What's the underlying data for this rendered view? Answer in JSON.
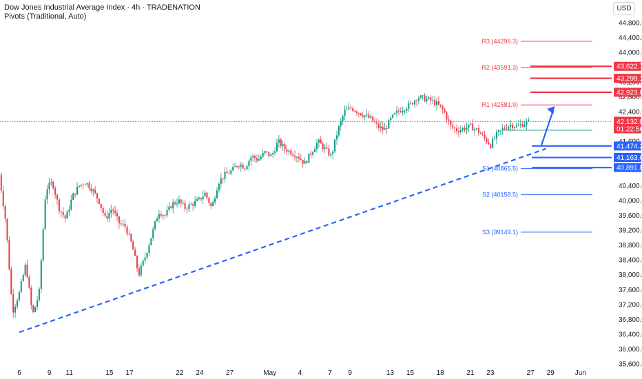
{
  "header": {
    "title": "Dow Jones Industrial Average Index · 4h · TRADENATION",
    "subtitle": "Pivots (Traditional, Auto)",
    "currency": "USD"
  },
  "colors": {
    "up": "#089981",
    "down": "#f23645",
    "pivot_red": "#f23645",
    "pivot_blue": "#2962ff",
    "resistance": "#f23645",
    "support": "#2962ff",
    "trendline": "#2962ff",
    "price_line": "#f23645"
  },
  "chart_data": {
    "type": "candlestick",
    "y_axis": {
      "ylim": [
        35430,
        45040
      ],
      "ticks": [
        "44,800.0",
        "44,400.0",
        "44,000.0",
        "43,600.0",
        "43,200.0",
        "42,800.0",
        "42,400.0",
        "42,000.0",
        "41,600.0",
        "41,200.0",
        "40,400.0",
        "40,000.0",
        "39,600.0",
        "39,200.0",
        "38,800.0",
        "38,400.0",
        "38,000.0",
        "37,600.0",
        "37,200.0",
        "36,800.0",
        "36,400.0",
        "36,000.0",
        "35,600.0"
      ],
      "tick_values": [
        44800,
        44400,
        44000,
        43600,
        43200,
        42800,
        42400,
        42000,
        41600,
        41200,
        40400,
        40000,
        39600,
        39200,
        38800,
        38400,
        38000,
        37600,
        37200,
        36800,
        36400,
        36000,
        35600
      ]
    },
    "x_axis": {
      "ticks": [
        "6",
        "9",
        "11",
        "15",
        "17",
        "22",
        "24",
        "27",
        "May",
        "4",
        "7",
        "9",
        "13",
        "15",
        "18",
        "21",
        "23",
        "27",
        "29",
        "Jun"
      ],
      "tick_dates": [
        "2025-04-06",
        "2025-04-09",
        "2025-04-11",
        "2025-04-15",
        "2025-04-17",
        "2025-04-22",
        "2025-04-24",
        "2025-04-27",
        "2025-05-01",
        "2025-05-04",
        "2025-05-07",
        "2025-05-09",
        "2025-05-13",
        "2025-05-15",
        "2025-05-18",
        "2025-05-21",
        "2025-05-23",
        "2025-05-27",
        "2025-05-29",
        "2025-06-01"
      ]
    },
    "pivots": [
      {
        "name": "R3",
        "label": "R3 (44298.3)",
        "value": 44298.3,
        "color": "red"
      },
      {
        "name": "R2",
        "label": "R2 (43591.3)",
        "value": 43591.3,
        "color": "red"
      },
      {
        "name": "R1",
        "label": "R1 (42581.9)",
        "value": 42581.9,
        "color": "red"
      },
      {
        "name": "S1",
        "label": "S1 (40865.5)",
        "value": 40865.5,
        "color": "blue"
      },
      {
        "name": "S2",
        "label": "S2 (40158.5)",
        "value": 40158.5,
        "color": "blue"
      },
      {
        "name": "S3",
        "label": "S3 (39149.1)",
        "value": 39149.1,
        "color": "blue"
      }
    ],
    "resistance_levels": [
      43622.7,
      43299.1,
      42923.8
    ],
    "support_levels": [
      41474.2,
      41163.6,
      40891.8
    ],
    "price_tags": [
      {
        "text": "43,622.7",
        "value": 43622.7,
        "color": "red"
      },
      {
        "text": "43,299.1",
        "value": 43299.1,
        "color": "red"
      },
      {
        "text": "42,923.8",
        "value": 42923.8,
        "color": "red"
      },
      {
        "text": "41,474.2",
        "value": 41474.2,
        "color": "blue"
      },
      {
        "text": "41,163.6",
        "value": 41163.6,
        "color": "blue"
      },
      {
        "text": "40,891.8",
        "value": 40891.8,
        "color": "blue"
      }
    ],
    "current_price": {
      "text": "42,132.0",
      "value": 42132.0,
      "countdown": "01:22:56"
    },
    "trendline": {
      "start": [
        "2025-04-06",
        36450
      ],
      "end": [
        "2025-05-28",
        41400
      ]
    },
    "projection_arrow": {
      "start": [
        "2025-05-27",
        41500
      ],
      "end": [
        "2025-05-29",
        42550
      ]
    },
    "close_path": [
      [
        "2025-04-04",
        40700
      ],
      [
        "2025-04-06",
        39400
      ],
      [
        "2025-04-07",
        37000
      ],
      [
        "2025-04-08",
        37500
      ],
      [
        "2025-04-08",
        38300
      ],
      [
        "2025-04-09",
        36900
      ],
      [
        "2025-04-09",
        37500
      ],
      [
        "2025-04-09",
        40300
      ],
      [
        "2025-04-10",
        40500
      ],
      [
        "2025-04-10",
        39800
      ],
      [
        "2025-04-11",
        39500
      ],
      [
        "2025-04-11",
        40100
      ],
      [
        "2025-04-14",
        40400
      ],
      [
        "2025-04-15",
        40500
      ],
      [
        "2025-04-15",
        40300
      ],
      [
        "2025-04-16",
        40000
      ],
      [
        "2025-04-16",
        39500
      ],
      [
        "2025-04-17",
        39800
      ],
      [
        "2025-04-17",
        39400
      ],
      [
        "2025-04-18",
        39300
      ],
      [
        "2025-04-21",
        38800
      ],
      [
        "2025-04-21",
        38000
      ],
      [
        "2025-04-22",
        38500
      ],
      [
        "2025-04-22",
        39100
      ],
      [
        "2025-04-23",
        39700
      ],
      [
        "2025-04-23",
        39600
      ],
      [
        "2025-04-24",
        39900
      ],
      [
        "2025-04-24",
        40000
      ],
      [
        "2025-04-25",
        39800
      ],
      [
        "2025-04-28",
        39900
      ],
      [
        "2025-04-28",
        40000
      ],
      [
        "2025-04-29",
        40200
      ],
      [
        "2025-04-29",
        39800
      ],
      [
        "2025-04-30",
        40500
      ],
      [
        "2025-04-30",
        40700
      ],
      [
        "2025-05-01",
        40800
      ],
      [
        "2025-05-02",
        41000
      ],
      [
        "2025-05-03",
        40900
      ],
      [
        "2025-05-04",
        41200
      ],
      [
        "2025-05-05",
        41100
      ],
      [
        "2025-05-06",
        41300
      ],
      [
        "2025-05-07",
        41200
      ],
      [
        "2025-05-08",
        41600
      ],
      [
        "2025-05-08",
        41400
      ],
      [
        "2025-05-09",
        41300
      ],
      [
        "2025-05-09",
        41200
      ],
      [
        "2025-05-10",
        41000
      ],
      [
        "2025-05-10",
        41300
      ],
      [
        "2025-05-11",
        41600
      ],
      [
        "2025-05-11",
        41400
      ],
      [
        "2025-05-12",
        41200
      ],
      [
        "2025-05-12",
        41900
      ],
      [
        "2025-05-12",
        42400
      ],
      [
        "2025-05-13",
        42500
      ],
      [
        "2025-05-14",
        42400
      ],
      [
        "2025-05-14",
        42300
      ],
      [
        "2025-05-15",
        42200
      ],
      [
        "2025-05-15",
        42000
      ],
      [
        "2025-05-16",
        41900
      ],
      [
        "2025-05-16",
        42200
      ],
      [
        "2025-05-17",
        42400
      ],
      [
        "2025-05-17",
        42500
      ],
      [
        "2025-05-18",
        42600
      ],
      [
        "2025-05-18",
        42800
      ],
      [
        "2025-05-19",
        42750
      ],
      [
        "2025-05-19",
        42700
      ],
      [
        "2025-05-20",
        42600
      ],
      [
        "2025-05-20",
        42400
      ],
      [
        "2025-05-21",
        42000
      ],
      [
        "2025-05-21",
        41900
      ],
      [
        "2025-05-22",
        41950
      ],
      [
        "2025-05-22",
        42000
      ],
      [
        "2025-05-23",
        41900
      ],
      [
        "2025-05-23",
        41700
      ],
      [
        "2025-05-23",
        41500
      ],
      [
        "2025-05-24",
        41800
      ],
      [
        "2025-05-24",
        41950
      ],
      [
        "2025-05-25",
        42050
      ],
      [
        "2025-05-25",
        42000
      ],
      [
        "2025-05-26",
        42080
      ],
      [
        "2025-05-27",
        42132
      ]
    ]
  }
}
